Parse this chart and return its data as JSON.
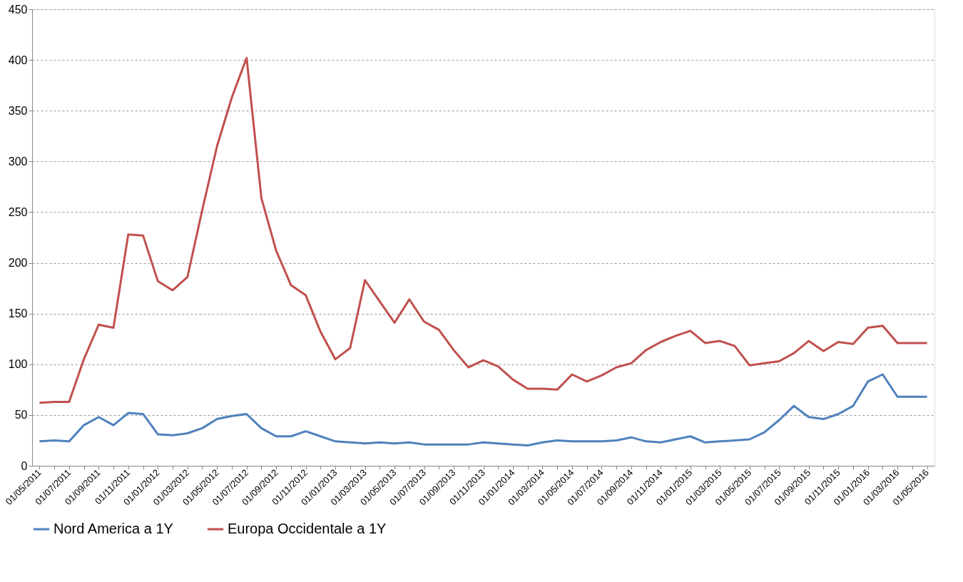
{
  "chart_data": {
    "type": "line",
    "categories": [
      "01/05/2011",
      null,
      "01/07/2011",
      null,
      "01/09/2011",
      null,
      "01/11/2011",
      null,
      "01/01/2012",
      null,
      "01/03/2012",
      null,
      "01/05/2012",
      null,
      "01/07/2012",
      null,
      "01/09/2012",
      null,
      "01/11/2012",
      null,
      "01/01/2013",
      null,
      "01/03/2013",
      null,
      "01/05/2013",
      null,
      "01/07/2013",
      null,
      "01/09/2013",
      null,
      "01/11/2013",
      null,
      "01/01/2014",
      null,
      "01/03/2014",
      null,
      "01/05/2014",
      null,
      "01/07/2014",
      null,
      "01/09/2014",
      null,
      "01/11/2014",
      null,
      "01/01/2015",
      null,
      "01/03/2015",
      null,
      "01/05/2015",
      null,
      "01/07/2015",
      null,
      "01/09/2015",
      null,
      "01/11/2015",
      null,
      "01/01/2016",
      null,
      "01/03/2016",
      null,
      "01/05/2016"
    ],
    "series": [
      {
        "name": "Nord America a 1Y",
        "color": "#4f81bd",
        "values": [
          24,
          25,
          24,
          40,
          48,
          40,
          52,
          51,
          31,
          30,
          32,
          37,
          46,
          49,
          51,
          37,
          29,
          29,
          34,
          29,
          24,
          23,
          22,
          23,
          22,
          23,
          21,
          21,
          21,
          21,
          23,
          22,
          21,
          20,
          23,
          25,
          24,
          24,
          24,
          25,
          28,
          24,
          23,
          26,
          29,
          23,
          24,
          25,
          26,
          33,
          45,
          59,
          48,
          46,
          51,
          59,
          83,
          90,
          68,
          68,
          68
        ]
      },
      {
        "name": "Europa Occidentale a 1Y",
        "color": "#c0504d",
        "values": [
          62,
          63,
          63,
          105,
          139,
          136,
          228,
          227,
          182,
          173,
          186,
          252,
          315,
          363,
          402,
          264,
          212,
          178,
          168,
          132,
          105,
          116,
          183,
          162,
          141,
          164,
          142,
          134,
          114,
          97,
          104,
          98,
          85,
          76,
          76,
          75,
          90,
          83,
          89,
          97,
          101,
          114,
          122,
          128,
          133,
          121,
          123,
          118,
          99,
          101,
          103,
          111,
          123,
          113,
          122,
          120,
          136,
          138,
          121,
          121,
          121
        ]
      }
    ],
    "ylim": [
      0,
      450
    ],
    "yticks": [
      0,
      50,
      100,
      150,
      200,
      250,
      300,
      350,
      400,
      450
    ],
    "grid": "y",
    "legend": "bottom",
    "marker": "none",
    "line_style": "solid"
  }
}
